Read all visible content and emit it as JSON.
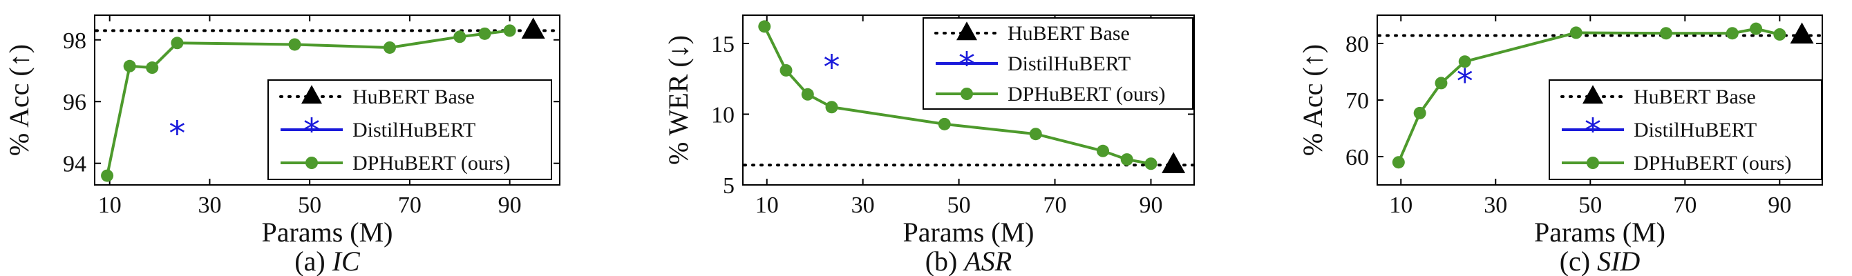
{
  "chart_data": [
    {
      "type": "line",
      "caption_prefix": "(a)",
      "caption_task": "IC",
      "xlabel": "Params (M)",
      "ylabel": "% Acc (↑)",
      "xlim": [
        7,
        100
      ],
      "ylim": [
        93.3,
        98.8
      ],
      "xticks": [
        10,
        30,
        50,
        70,
        90
      ],
      "yticks": [
        94,
        96,
        98
      ],
      "legend_position": "bottom-right",
      "grid": false,
      "baseline": {
        "name": "HuBERT Base",
        "x": 94.7,
        "y": 98.3
      },
      "distil": {
        "name": "DistilHuBERT",
        "x": 23.5,
        "y": 95.0
      },
      "series": [
        {
          "name": "DPHuBERT (ours)",
          "x": [
            9.5,
            14,
            18.5,
            23.5,
            47,
            66,
            80,
            85,
            90
          ],
          "y": [
            93.6,
            97.15,
            97.1,
            97.9,
            97.85,
            97.75,
            98.1,
            98.2,
            98.3
          ]
        }
      ]
    },
    {
      "type": "line",
      "caption_prefix": "(b)",
      "caption_task": "ASR",
      "xlabel": "Params (M)",
      "ylabel": "% WER (↓)",
      "xlim": [
        5,
        99
      ],
      "ylim": [
        5,
        17
      ],
      "xticks": [
        10,
        30,
        50,
        70,
        90
      ],
      "yticks": [
        5,
        10,
        15
      ],
      "legend_position": "top-right",
      "grid": false,
      "baseline": {
        "name": "HuBERT Base",
        "x": 94.7,
        "y": 6.4
      },
      "distil": {
        "name": "DistilHuBERT",
        "x": 23.5,
        "y": 13.4
      },
      "series": [
        {
          "name": "DPHuBERT (ours)",
          "x": [
            9.5,
            14,
            18.5,
            23.5,
            47,
            66,
            80,
            85,
            90
          ],
          "y": [
            16.2,
            13.1,
            11.4,
            10.5,
            9.3,
            8.6,
            7.4,
            6.8,
            6.5
          ]
        }
      ]
    },
    {
      "type": "line",
      "caption_prefix": "(c)",
      "caption_task": "SID",
      "xlabel": "Params (M)",
      "ylabel": "% Acc (↑)",
      "xlim": [
        5,
        99
      ],
      "ylim": [
        55,
        85
      ],
      "xticks": [
        10,
        30,
        50,
        70,
        90
      ],
      "yticks": [
        60,
        70,
        80
      ],
      "legend_position": "bottom-right",
      "grid": false,
      "baseline": {
        "name": "HuBERT Base",
        "x": 94.7,
        "y": 81.4
      },
      "distil": {
        "name": "DistilHuBERT",
        "x": 23.5,
        "y": 73.5
      },
      "series": [
        {
          "name": "DPHuBERT (ours)",
          "x": [
            9.5,
            14,
            18.5,
            23.5,
            47,
            66,
            80,
            85,
            90
          ],
          "y": [
            59.0,
            67.7,
            73.0,
            76.8,
            81.9,
            81.8,
            81.8,
            82.6,
            81.6
          ]
        }
      ]
    }
  ],
  "colors": {
    "dphubert": "#4d9a2c",
    "distil": "#1a1adb",
    "baseline": "#000000"
  }
}
